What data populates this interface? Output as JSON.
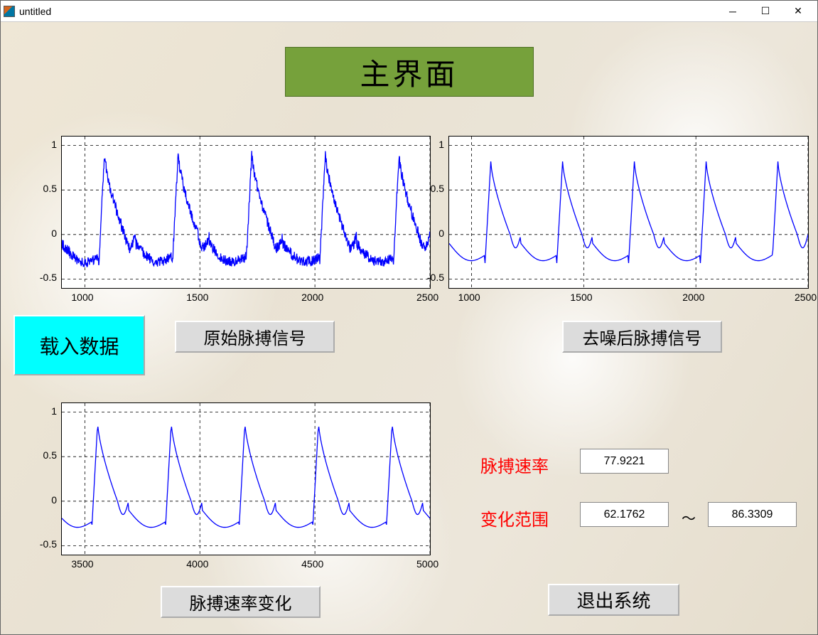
{
  "window": {
    "title": "untitled"
  },
  "main_title": "主界面",
  "buttons": {
    "load_data": "载入数据",
    "raw_signal": "原始脉搏信号",
    "denoised_signal": "去噪后脉搏信号",
    "rate_change": "脉搏速率变化",
    "exit_system": "退出系统"
  },
  "results": {
    "rate_label": "脉搏速率",
    "rate_value": "77.9221",
    "range_label": "变化范围",
    "range_low": "62.1762",
    "range_sep": "～",
    "range_high": "86.3309"
  },
  "chart_style": {
    "line_color": "#0000ff",
    "grid_color": "#000000",
    "bg_color": "#ffffff",
    "line_width_raw": 1.3,
    "line_width_smooth": 1.3
  },
  "axes1": {
    "type": "line",
    "xlim": [
      900,
      2500
    ],
    "ylim": [
      -0.6,
      1.1
    ],
    "xticks": [
      1000,
      1500,
      2000,
      2500
    ],
    "yticks": [
      -0.5,
      0,
      0.5,
      1
    ],
    "noisy": true,
    "peaks_x": [
      1060,
      1380,
      1700,
      2020,
      2340
    ],
    "peak_y": 0.9,
    "trough_y": -0.35,
    "start_y": -0.1
  },
  "axes2": {
    "type": "line",
    "xlim": [
      900,
      2500
    ],
    "ylim": [
      -0.6,
      1.1
    ],
    "xticks": [
      1000,
      1500,
      2000,
      2500
    ],
    "yticks": [
      -0.5,
      0,
      0.5,
      1
    ],
    "noisy": false,
    "peaks_x": [
      1060,
      1380,
      1700,
      2020,
      2340
    ],
    "peak_y": 0.82,
    "trough_y": -0.32,
    "start_y": -0.08
  },
  "axes3": {
    "type": "line",
    "xlim": [
      3400,
      5000
    ],
    "ylim": [
      -0.6,
      1.1
    ],
    "xticks": [
      3500,
      4000,
      4500,
      5000
    ],
    "yticks": [
      -0.5,
      0,
      0.5,
      1
    ],
    "noisy": false,
    "peaks_x": [
      3530,
      3850,
      4170,
      4490,
      4810
    ],
    "peak_y": 0.88,
    "trough_y": -0.32,
    "start_y": -0.3
  }
}
